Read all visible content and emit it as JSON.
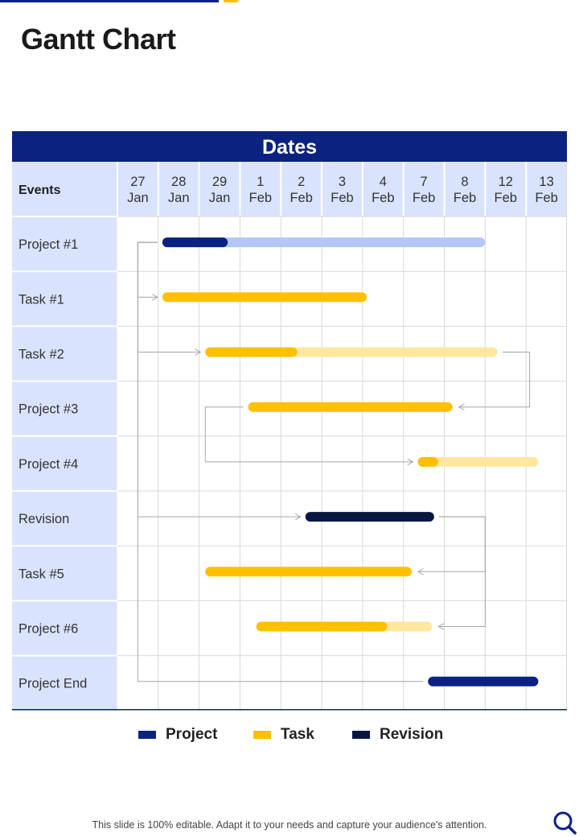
{
  "slide": {
    "title": "Gantt Chart",
    "footer": "This slide is 100% editable. Adapt it to your needs and capture your audience's attention.",
    "icons": {
      "search": "search-icon"
    }
  },
  "colors": {
    "header_bg": "#0b2280",
    "label_col_bg": "#d9e3fd",
    "project": "#0b2280",
    "project_light": "#b4c7f7",
    "task": "#ffc000",
    "task_light": "#ffe79f",
    "revision": "#081642",
    "grid": "#d9d9d9",
    "connector": "#a6a6a6"
  },
  "legend": [
    {
      "label": "Project",
      "color": "#0b2280"
    },
    {
      "label": "Task",
      "color": "#ffc000"
    },
    {
      "label": "Revision",
      "color": "#081642"
    }
  ],
  "chart_data": {
    "type": "gantt",
    "title": "Dates",
    "row_header": "Events",
    "dates": [
      [
        "27",
        "Jan"
      ],
      [
        "28",
        "Jan"
      ],
      [
        "29",
        "Jan"
      ],
      [
        "1",
        "Feb"
      ],
      [
        "2",
        "Feb"
      ],
      [
        "3",
        "Feb"
      ],
      [
        "4",
        "Feb"
      ],
      [
        "7",
        "Feb"
      ],
      [
        "8",
        "Feb"
      ],
      [
        "12",
        "Feb"
      ],
      [
        "13",
        "Feb"
      ]
    ],
    "events": [
      {
        "name": "Project #1",
        "kind": "project",
        "start": 1.1,
        "end": 9.0,
        "progress_end": 2.7
      },
      {
        "name": "Task #1",
        "kind": "task",
        "start": 1.1,
        "end": 6.1
      },
      {
        "name": "Task #2",
        "kind": "task",
        "start": 2.15,
        "end": 9.3,
        "progress_end": 4.4
      },
      {
        "name": "Project #3",
        "kind": "task",
        "start": 3.2,
        "end": 8.2
      },
      {
        "name": "Project #4",
        "kind": "task",
        "start": 7.35,
        "end": 10.3,
        "progress_end": 7.85
      },
      {
        "name": "Revision",
        "kind": "revision",
        "start": 4.6,
        "end": 7.75
      },
      {
        "name": "Task #5",
        "kind": "task",
        "start": 2.15,
        "end": 7.2
      },
      {
        "name": "Project #6",
        "kind": "task",
        "start": 3.4,
        "end": 7.7,
        "progress_end": 6.6
      },
      {
        "name": "Project End",
        "kind": "project",
        "start": 7.6,
        "end": 10.3
      }
    ],
    "dependencies": [
      {
        "from": "Project #1",
        "to": "Task #1"
      },
      {
        "from": "Project #1",
        "to": "Task #2"
      },
      {
        "from": "Project #1",
        "to": "Revision"
      },
      {
        "from": "Project #1",
        "to": "Project End"
      },
      {
        "from": "Task #2",
        "to": "Project #3"
      },
      {
        "from": "Project #3",
        "to": "Project #4"
      },
      {
        "from": "Revision",
        "to": "Task #5"
      },
      {
        "from": "Revision",
        "to": "Project #6"
      }
    ]
  }
}
